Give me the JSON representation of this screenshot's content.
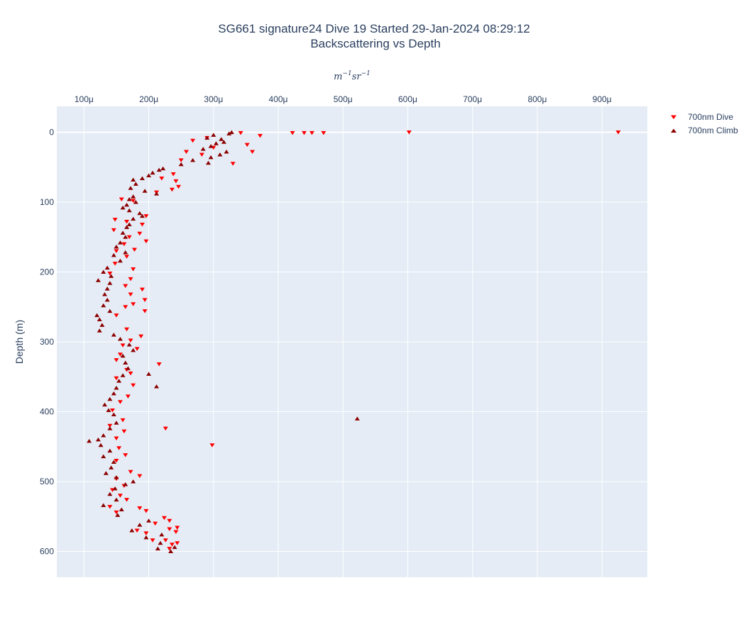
{
  "chart_data": {
    "type": "scatter",
    "title": "SG661 signature24 Dive 19 Started 29-Jan-2024 08:29:12",
    "subtitle": "Backscattering vs Depth",
    "xlabel_unit_base": "m",
    "xlabel_unit_exp1": "−1",
    "xlabel_unit_mid": "sr",
    "xlabel_unit_exp2": "−1",
    "ylabel": "Depth (m)",
    "x_axis_position": "top",
    "y_reversed": true,
    "xlim": [
      5.8e-05,
      0.00097
    ],
    "ylim": [
      637,
      -37
    ],
    "x_ticks": [
      0.0001,
      0.0002,
      0.0003,
      0.0004,
      0.0005,
      0.0006,
      0.0007,
      0.0008,
      0.0009
    ],
    "x_tick_labels": [
      "100μ",
      "200μ",
      "300μ",
      "400μ",
      "500μ",
      "600μ",
      "700μ",
      "800μ",
      "900μ"
    ],
    "y_ticks": [
      0,
      100,
      200,
      300,
      400,
      500,
      600
    ],
    "y_tick_labels": [
      "0",
      "100",
      "200",
      "300",
      "400",
      "500",
      "600"
    ],
    "grid": true,
    "legend_position": "top-right",
    "series": [
      {
        "name": "700nm Dive",
        "marker": "triangle-down",
        "color": "#ff0000",
        "points": [
          [
            0.000342,
            1
          ],
          [
            0.000372,
            5
          ],
          [
            0.000422,
            1
          ],
          [
            0.00044,
            1
          ],
          [
            0.000452,
            1
          ],
          [
            0.00047,
            1
          ],
          [
            0.000602,
            0
          ],
          [
            0.000925,
            0
          ],
          [
            0.000268,
            12
          ],
          [
            0.00029,
            8
          ],
          [
            0.000352,
            18
          ],
          [
            0.00036,
            28
          ],
          [
            0.00033,
            45
          ],
          [
            0.000258,
            28
          ],
          [
            0.0003,
            22
          ],
          [
            0.000282,
            32
          ],
          [
            0.00025,
            40
          ],
          [
            0.000238,
            60
          ],
          [
            0.000242,
            70
          ],
          [
            0.000246,
            78
          ],
          [
            0.000236,
            82
          ],
          [
            0.00022,
            66
          ],
          [
            0.000212,
            86
          ],
          [
            0.000176,
            98
          ],
          [
            0.000158,
            96
          ],
          [
            0.000196,
            120
          ],
          [
            0.000148,
            125
          ],
          [
            0.00019,
            132
          ],
          [
            0.000166,
            128
          ],
          [
            0.000186,
            145
          ],
          [
            0.00017,
            150
          ],
          [
            0.000196,
            156
          ],
          [
            0.000146,
            140
          ],
          [
            0.000162,
            160
          ],
          [
            0.000178,
            168
          ],
          [
            0.00015,
            170
          ],
          [
            0.000166,
            178
          ],
          [
            0.000176,
            196
          ],
          [
            0.000148,
            188
          ],
          [
            0.00014,
            202
          ],
          [
            0.000172,
            210
          ],
          [
            0.000164,
            220
          ],
          [
            0.00019,
            225
          ],
          [
            0.000172,
            232
          ],
          [
            0.000194,
            240
          ],
          [
            0.000176,
            246
          ],
          [
            0.000164,
            250
          ],
          [
            0.000194,
            256
          ],
          [
            0.00015,
            262
          ],
          [
            0.000166,
            282
          ],
          [
            0.000188,
            292
          ],
          [
            0.000172,
            298
          ],
          [
            0.00016,
            305
          ],
          [
            0.000182,
            310
          ],
          [
            0.000156,
            318
          ],
          [
            0.000216,
            332
          ],
          [
            0.00015,
            326
          ],
          [
            0.000166,
            340
          ],
          [
            0.000172,
            345
          ],
          [
            0.00015,
            352
          ],
          [
            0.000176,
            362
          ],
          [
            0.000168,
            378
          ],
          [
            0.000156,
            386
          ],
          [
            0.000144,
            398
          ],
          [
            0.00016,
            412
          ],
          [
            0.000226,
            424
          ],
          [
            0.00014,
            420
          ],
          [
            0.000162,
            428
          ],
          [
            0.00015,
            438
          ],
          [
            0.000298,
            448
          ],
          [
            0.000154,
            452
          ],
          [
            0.000164,
            462
          ],
          [
            0.00015,
            470
          ],
          [
            0.000172,
            486
          ],
          [
            0.000186,
            492
          ],
          [
            0.00015,
            496
          ],
          [
            0.000162,
            506
          ],
          [
            0.000144,
            512
          ],
          [
            0.000156,
            520
          ],
          [
            0.000166,
            526
          ],
          [
            0.00014,
            536
          ],
          [
            0.00015,
            544
          ],
          [
            0.000186,
            538
          ],
          [
            0.000196,
            542
          ],
          [
            0.000224,
            552
          ],
          [
            0.000232,
            556
          ],
          [
            0.000244,
            566
          ],
          [
            0.00021,
            560
          ],
          [
            0.000232,
            568
          ],
          [
            0.000242,
            572
          ],
          [
            0.000196,
            574
          ],
          [
            0.000226,
            584
          ],
          [
            0.000244,
            588
          ],
          [
            0.000232,
            596
          ],
          [
            0.000236,
            590
          ],
          [
            0.000206,
            584
          ],
          [
            0.000182,
            570
          ]
        ]
      },
      {
        "name": "700nm Climb",
        "marker": "triangle-up",
        "color": "#8b0000",
        "points": [
          [
            0.000324,
            2
          ],
          [
            0.000328,
            0
          ],
          [
            0.0003,
            4
          ],
          [
            0.00029,
            8
          ],
          [
            0.000312,
            10
          ],
          [
            0.000316,
            14
          ],
          [
            0.000304,
            16
          ],
          [
            0.000296,
            20
          ],
          [
            0.000284,
            24
          ],
          [
            0.00032,
            28
          ],
          [
            0.00031,
            32
          ],
          [
            0.000296,
            36
          ],
          [
            0.000292,
            44
          ],
          [
            0.000268,
            40
          ],
          [
            0.00025,
            46
          ],
          [
            0.000222,
            52
          ],
          [
            0.000216,
            54
          ],
          [
            0.000206,
            58
          ],
          [
            0.0002,
            62
          ],
          [
            0.00019,
            66
          ],
          [
            0.000176,
            68
          ],
          [
            0.00018,
            74
          ],
          [
            0.000172,
            80
          ],
          [
            0.000194,
            84
          ],
          [
            0.000212,
            88
          ],
          [
            0.000176,
            92
          ],
          [
            0.00017,
            96
          ],
          [
            0.00018,
            100
          ],
          [
            0.000166,
            104
          ],
          [
            0.00016,
            108
          ],
          [
            0.00017,
            112
          ],
          [
            0.000186,
            116
          ],
          [
            0.00019,
            120
          ],
          [
            0.000176,
            124
          ],
          [
            0.00017,
            132
          ],
          [
            0.000166,
            136
          ],
          [
            0.00016,
            144
          ],
          [
            0.000164,
            150
          ],
          [
            0.000156,
            158
          ],
          [
            0.00015,
            164
          ],
          [
            0.000164,
            172
          ],
          [
            0.000146,
            176
          ],
          [
            0.000156,
            184
          ],
          [
            0.000136,
            194
          ],
          [
            0.00013,
            200
          ],
          [
            0.000142,
            206
          ],
          [
            0.000122,
            212
          ],
          [
            0.00014,
            216
          ],
          [
            0.000136,
            224
          ],
          [
            0.000132,
            232
          ],
          [
            0.000136,
            240
          ],
          [
            0.00013,
            248
          ],
          [
            0.00014,
            256
          ],
          [
            0.00012,
            262
          ],
          [
            0.000124,
            268
          ],
          [
            0.000128,
            276
          ],
          [
            0.000124,
            284
          ],
          [
            0.000146,
            290
          ],
          [
            0.000156,
            296
          ],
          [
            0.00017,
            304
          ],
          [
            0.000176,
            312
          ],
          [
            0.00016,
            320
          ],
          [
            0.000164,
            330
          ],
          [
            0.000168,
            338
          ],
          [
            0.00016,
            348
          ],
          [
            0.000154,
            356
          ],
          [
            0.0002,
            346
          ],
          [
            0.000212,
            364
          ],
          [
            0.00015,
            366
          ],
          [
            0.000146,
            374
          ],
          [
            0.00014,
            382
          ],
          [
            0.000132,
            390
          ],
          [
            0.000138,
            398
          ],
          [
            0.000146,
            404
          ],
          [
            0.000522,
            410
          ],
          [
            0.00015,
            416
          ],
          [
            0.00014,
            424
          ],
          [
            0.00013,
            434
          ],
          [
            0.000122,
            440
          ],
          [
            0.000108,
            442
          ],
          [
            0.000126,
            448
          ],
          [
            0.00014,
            456
          ],
          [
            0.00013,
            464
          ],
          [
            0.000146,
            472
          ],
          [
            0.000142,
            480
          ],
          [
            0.000134,
            488
          ],
          [
            0.00015,
            494
          ],
          [
            0.000176,
            500
          ],
          [
            0.000164,
            504
          ],
          [
            0.000148,
            510
          ],
          [
            0.00014,
            518
          ],
          [
            0.00015,
            526
          ],
          [
            0.00013,
            534
          ],
          [
            0.000158,
            540
          ],
          [
            0.000152,
            548
          ],
          [
            0.0002,
            556
          ],
          [
            0.000186,
            562
          ],
          [
            0.000174,
            570
          ],
          [
            0.000196,
            580
          ],
          [
            0.00022,
            576
          ],
          [
            0.000218,
            588
          ],
          [
            0.00024,
            594
          ],
          [
            0.000234,
            600
          ],
          [
            0.000214,
            596
          ]
        ]
      }
    ]
  }
}
